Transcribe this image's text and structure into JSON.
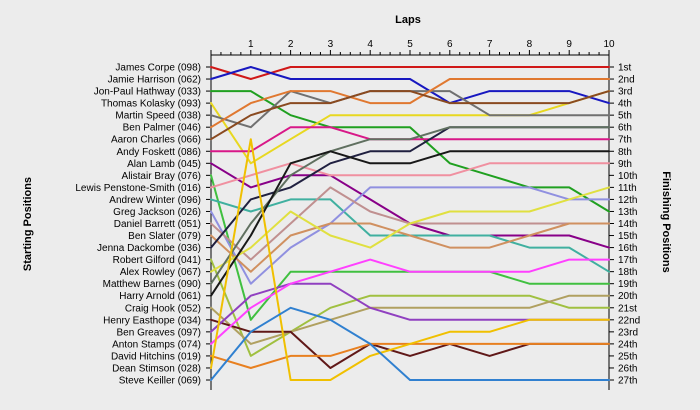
{
  "colors": {
    "background": "#ececec",
    "axis": "#000000",
    "grid": "#ffffff"
  },
  "chart_data": {
    "type": "line",
    "title": "Laps",
    "xlabel": "Laps",
    "ylabel_left": "Starting Positions",
    "ylabel_right": "Finishing Positions",
    "x": [
      0,
      1,
      2,
      3,
      4,
      5,
      6,
      7,
      8,
      9,
      10
    ],
    "x_ticks": [
      "1",
      "2",
      "3",
      "4",
      "5",
      "6",
      "7",
      "8",
      "9",
      "10"
    ],
    "ylim": [
      1,
      27
    ],
    "grid": false,
    "left_labels": [
      "James Corpe (098)",
      "Jamie Harrison (062)",
      "Jon-Paul Hathway (033)",
      "Thomas Kolasky (093)",
      "Martin Speed (038)",
      "Ben Palmer (046)",
      "Aaron Charles (066)",
      "Andy Foskett (086)",
      "Alan Lamb (045)",
      "Alistair Bray (076)",
      "Lewis Penstone-Smith (016)",
      "Andrew Winter (096)",
      "Greg Jackson (026)",
      "Daniel Barrett (051)",
      "Ben Slater (079)",
      "Jenna Dackombe (036)",
      "Robert Gilford (041)",
      "Alex Rowley (067)",
      "Matthew Barnes (090)",
      "Harry Arnold (061)",
      "Craig Hook (052)",
      "Henry Easthope (034)",
      "Ben Greaves (097)",
      "Anton Stamps (074)",
      "David Hitchins (019)",
      "Dean Stimson (028)",
      "Steve Keiller (069)"
    ],
    "right_labels": [
      "1st",
      "2nd",
      "3rd",
      "4th",
      "5th",
      "6th",
      "7th",
      "8th",
      "9th",
      "10th",
      "11th",
      "12th",
      "13th",
      "14th",
      "15th",
      "16th",
      "17th",
      "18th",
      "19th",
      "20th",
      "21st",
      "22nd",
      "23rd",
      "24th",
      "25th",
      "26th",
      "27th"
    ],
    "series": [
      {
        "color": "#d01818",
        "values": [
          1,
          2,
          1,
          1,
          1,
          1,
          1,
          1,
          1,
          1,
          1
        ]
      },
      {
        "color": "#1818c0",
        "values": [
          2,
          1,
          2,
          2,
          2,
          2,
          4,
          3,
          3,
          3,
          4
        ]
      },
      {
        "color": "#20a020",
        "values": [
          3,
          3,
          5,
          6,
          6,
          6,
          9,
          10,
          11,
          11,
          13
        ]
      },
      {
        "color": "#e8d820",
        "values": [
          4,
          9,
          7,
          5,
          5,
          5,
          5,
          5,
          5,
          4,
          3
        ]
      },
      {
        "color": "#707070",
        "values": [
          5,
          6,
          3,
          4,
          3,
          3,
          3,
          5,
          5,
          5,
          5
        ]
      },
      {
        "color": "#e07830",
        "values": [
          6,
          4,
          3,
          3,
          4,
          4,
          2,
          2,
          2,
          2,
          2
        ]
      },
      {
        "color": "#8a4a20",
        "values": [
          7,
          5,
          4,
          4,
          3,
          3,
          4,
          4,
          4,
          4,
          3
        ]
      },
      {
        "color": "#d81888",
        "values": [
          8,
          8,
          6,
          6,
          7,
          7,
          7,
          7,
          7,
          7,
          7
        ]
      },
      {
        "color": "#880088",
        "values": [
          9,
          11,
          10,
          10,
          12,
          14,
          15,
          15,
          15,
          15,
          16
        ]
      },
      {
        "color": "#40c040",
        "values": [
          10,
          22,
          18,
          18,
          18,
          18,
          18,
          18,
          19,
          19,
          19
        ]
      },
      {
        "color": "#f090a0",
        "values": [
          11,
          10,
          9,
          10,
          10,
          10,
          10,
          9,
          9,
          9,
          9
        ]
      },
      {
        "color": "#40b0a0",
        "values": [
          12,
          13,
          12,
          12,
          15,
          15,
          15,
          15,
          16,
          16,
          18
        ]
      },
      {
        "color": "#9090e0",
        "values": [
          13,
          19,
          16,
          14,
          11,
          11,
          11,
          11,
          11,
          12,
          12
        ]
      },
      {
        "color": "#c09090",
        "values": [
          14,
          17,
          14,
          11,
          13,
          14,
          14,
          14,
          14,
          14,
          14
        ]
      },
      {
        "color": "#d09060",
        "values": [
          15,
          18,
          15,
          14,
          14,
          15,
          16,
          16,
          15,
          14,
          14
        ]
      },
      {
        "color": "#202040",
        "values": [
          16,
          12,
          11,
          9,
          8,
          8,
          6,
          6,
          6,
          6,
          6
        ]
      },
      {
        "color": "#a0c040",
        "values": [
          17,
          25,
          23,
          21,
          20,
          20,
          20,
          20,
          20,
          21,
          21
        ]
      },
      {
        "color": "#e0e040",
        "values": [
          18,
          16,
          13,
          15,
          16,
          14,
          13,
          13,
          13,
          12,
          11
        ]
      },
      {
        "color": "#607060",
        "values": [
          19,
          14,
          10,
          8,
          7,
          7,
          6,
          6,
          6,
          6,
          6
        ]
      },
      {
        "color": "#181818",
        "values": [
          20,
          15,
          9,
          8,
          9,
          9,
          8,
          8,
          8,
          8,
          8
        ]
      },
      {
        "color": "#b0a060",
        "values": [
          21,
          24,
          23,
          22,
          21,
          21,
          21,
          21,
          21,
          20,
          20
        ]
      },
      {
        "color": "#601818",
        "values": [
          22,
          23,
          23,
          26,
          24,
          25,
          24,
          25,
          24,
          24,
          24
        ]
      },
      {
        "color": "#9040c0",
        "values": [
          23,
          20,
          19,
          19,
          21,
          22,
          22,
          22,
          22,
          22,
          22
        ]
      },
      {
        "color": "#ff40ff",
        "values": [
          24,
          21,
          19,
          18,
          17,
          18,
          18,
          18,
          18,
          17,
          17
        ]
      },
      {
        "color": "#e88020",
        "values": [
          25,
          26,
          25,
          25,
          24,
          24,
          24,
          24,
          24,
          24,
          24
        ]
      },
      {
        "color": "#f0c000",
        "values": [
          26,
          7,
          27,
          27,
          25,
          24,
          23,
          23,
          22,
          22,
          22
        ]
      },
      {
        "color": "#3080d0",
        "values": [
          27,
          23,
          21,
          22,
          24,
          27,
          27,
          27,
          27,
          27,
          27
        ]
      }
    ]
  }
}
